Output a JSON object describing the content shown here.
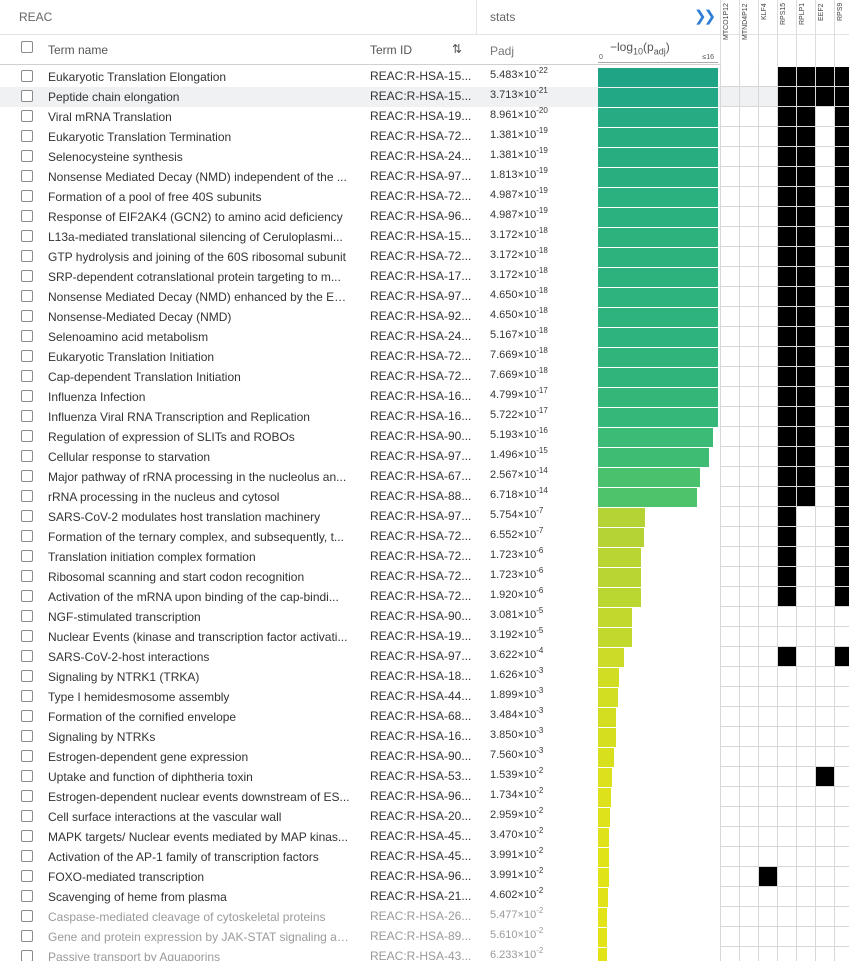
{
  "header": {
    "source": "REAC",
    "stats_label": "stats",
    "expand_icon": "double-chevron-right",
    "term_name_label": "Term name",
    "term_id_label": "Term ID",
    "padj_label": "Padj",
    "axis_label_main": "−log",
    "axis_label_sub1": "10",
    "axis_label_mid": "(p",
    "axis_label_sub2": "adj",
    "axis_label_end": ")",
    "axis_min": "0",
    "axis_max": "≤16"
  },
  "accent_color": "#2f7fd6",
  "genes": [
    "MTCO1P12",
    "MTND4P12",
    "KLF4",
    "RPS15",
    "RPLP1",
    "EEF2",
    "RPS9"
  ],
  "gene_axis_max": 16,
  "rows": [
    {
      "name": "Eukaryotic Translation Elongation",
      "id": "REAC:R-HSA-15...",
      "mantissa": "5.483",
      "exp": "-22",
      "neglog": 21.26,
      "color": "#20a486",
      "genes": [
        3,
        4,
        5,
        6
      ]
    },
    {
      "name": "Peptide chain elongation",
      "id": "REAC:R-HSA-15...",
      "mantissa": "3.713",
      "exp": "-21",
      "neglog": 20.43,
      "color": "#22a884",
      "genes": [
        3,
        4,
        5,
        6
      ],
      "highlight": true
    },
    {
      "name": "Viral mRNA Translation",
      "id": "REAC:R-HSA-19...",
      "mantissa": "8.961",
      "exp": "-20",
      "neglog": 19.05,
      "color": "#26ab82",
      "genes": [
        3,
        4,
        6
      ]
    },
    {
      "name": "Eukaryotic Translation Termination",
      "id": "REAC:R-HSA-72...",
      "mantissa": "1.381",
      "exp": "-19",
      "neglog": 18.86,
      "color": "#28ad81",
      "genes": [
        3,
        4,
        6
      ]
    },
    {
      "name": "Selenocysteine synthesis",
      "id": "REAC:R-HSA-24...",
      "mantissa": "1.381",
      "exp": "-19",
      "neglog": 18.86,
      "color": "#28ad81",
      "genes": [
        3,
        4,
        6
      ]
    },
    {
      "name": "Nonsense Mediated Decay (NMD) independent of the ...",
      "id": "REAC:R-HSA-97...",
      "mantissa": "1.813",
      "exp": "-19",
      "neglog": 18.74,
      "color": "#29ae80",
      "genes": [
        3,
        4,
        6
      ]
    },
    {
      "name": "Formation of a pool of free 40S subunits",
      "id": "REAC:R-HSA-72...",
      "mantissa": "4.987",
      "exp": "-19",
      "neglog": 18.3,
      "color": "#2bb07f",
      "genes": [
        3,
        4,
        6
      ]
    },
    {
      "name": "Response of EIF2AK4 (GCN2) to amino acid deficiency",
      "id": "REAC:R-HSA-96...",
      "mantissa": "4.987",
      "exp": "-19",
      "neglog": 18.3,
      "color": "#2bb07f",
      "genes": [
        3,
        4,
        6
      ]
    },
    {
      "name": "L13a-mediated translational silencing of Ceruloplasmi...",
      "id": "REAC:R-HSA-15...",
      "mantissa": "3.172",
      "exp": "-18",
      "neglog": 17.5,
      "color": "#2db27d",
      "genes": [
        3,
        4,
        6
      ]
    },
    {
      "name": "GTP hydrolysis and joining of the 60S ribosomal subunit",
      "id": "REAC:R-HSA-72...",
      "mantissa": "3.172",
      "exp": "-18",
      "neglog": 17.5,
      "color": "#2db27d",
      "genes": [
        3,
        4,
        6
      ]
    },
    {
      "name": "SRP-dependent cotranslational protein targeting to m...",
      "id": "REAC:R-HSA-17...",
      "mantissa": "3.172",
      "exp": "-18",
      "neglog": 17.5,
      "color": "#2db27d",
      "genes": [
        3,
        4,
        6
      ]
    },
    {
      "name": "Nonsense Mediated Decay (NMD) enhanced by the Ex...",
      "id": "REAC:R-HSA-97...",
      "mantissa": "4.650",
      "exp": "-18",
      "neglog": 17.33,
      "color": "#2eb37c",
      "genes": [
        3,
        4,
        6
      ]
    },
    {
      "name": "Nonsense-Mediated Decay (NMD)",
      "id": "REAC:R-HSA-92...",
      "mantissa": "4.650",
      "exp": "-18",
      "neglog": 17.33,
      "color": "#2eb37c",
      "genes": [
        3,
        4,
        6
      ]
    },
    {
      "name": "Selenoamino acid metabolism",
      "id": "REAC:R-HSA-24...",
      "mantissa": "5.167",
      "exp": "-18",
      "neglog": 17.29,
      "color": "#2eb37c",
      "genes": [
        3,
        4,
        6
      ]
    },
    {
      "name": "Eukaryotic Translation Initiation",
      "id": "REAC:R-HSA-72...",
      "mantissa": "7.669",
      "exp": "-18",
      "neglog": 17.12,
      "color": "#30b47b",
      "genes": [
        3,
        4,
        6
      ]
    },
    {
      "name": "Cap-dependent Translation Initiation",
      "id": "REAC:R-HSA-72...",
      "mantissa": "7.669",
      "exp": "-18",
      "neglog": 17.12,
      "color": "#30b47b",
      "genes": [
        3,
        4,
        6
      ]
    },
    {
      "name": "Influenza Infection",
      "id": "REAC:R-HSA-16...",
      "mantissa": "4.799",
      "exp": "-17",
      "neglog": 16.32,
      "color": "#34b679",
      "genes": [
        3,
        4,
        6
      ]
    },
    {
      "name": "Influenza Viral RNA Transcription and Replication",
      "id": "REAC:R-HSA-16...",
      "mantissa": "5.722",
      "exp": "-17",
      "neglog": 16.24,
      "color": "#35b779",
      "genes": [
        3,
        4,
        6
      ]
    },
    {
      "name": "Regulation of expression of SLITs and ROBOs",
      "id": "REAC:R-HSA-90...",
      "mantissa": "5.193",
      "exp": "-16",
      "neglog": 15.28,
      "color": "#3bbb75",
      "genes": [
        3,
        4,
        6
      ]
    },
    {
      "name": "Cellular response to starvation",
      "id": "REAC:R-HSA-97...",
      "mantissa": "1.496",
      "exp": "-15",
      "neglog": 14.83,
      "color": "#3fbc73",
      "genes": [
        3,
        4,
        6
      ]
    },
    {
      "name": "Major pathway of rRNA processing in the nucleolus an...",
      "id": "REAC:R-HSA-67...",
      "mantissa": "2.567",
      "exp": "-14",
      "neglog": 13.59,
      "color": "#4ac16d",
      "genes": [
        3,
        4,
        6
      ]
    },
    {
      "name": "rRNA processing in the nucleus and cytosol",
      "id": "REAC:R-HSA-88...",
      "mantissa": "6.718",
      "exp": "-14",
      "neglog": 13.17,
      "color": "#4ec36b",
      "genes": [
        3,
        4,
        6
      ]
    },
    {
      "name": "SARS-CoV-2 modulates host translation machinery",
      "id": "REAC:R-HSA-97...",
      "mantissa": "5.754",
      "exp": "-7",
      "neglog": 6.24,
      "color": "#b5d334",
      "genes": [
        3,
        6
      ]
    },
    {
      "name": "Formation of the ternary complex, and subsequently, t...",
      "id": "REAC:R-HSA-72...",
      "mantissa": "6.552",
      "exp": "-7",
      "neglog": 6.18,
      "color": "#b5d334",
      "genes": [
        3,
        6
      ]
    },
    {
      "name": "Translation initiation complex formation",
      "id": "REAC:R-HSA-72...",
      "mantissa": "1.723",
      "exp": "-6",
      "neglog": 5.76,
      "color": "#b9d532",
      "genes": [
        3,
        6
      ]
    },
    {
      "name": "Ribosomal scanning and start codon recognition",
      "id": "REAC:R-HSA-72...",
      "mantissa": "1.723",
      "exp": "-6",
      "neglog": 5.76,
      "color": "#b9d532",
      "genes": [
        3,
        6
      ]
    },
    {
      "name": "Activation of the mRNA upon binding of the cap-bindi...",
      "id": "REAC:R-HSA-72...",
      "mantissa": "1.920",
      "exp": "-6",
      "neglog": 5.72,
      "color": "#bad631",
      "genes": [
        3,
        6
      ]
    },
    {
      "name": "NGF-stimulated transcription",
      "id": "REAC:R-HSA-90...",
      "mantissa": "3.081",
      "exp": "-5",
      "neglog": 4.51,
      "color": "#c3d82c",
      "genes": []
    },
    {
      "name": "Nuclear Events (kinase and transcription factor activati...",
      "id": "REAC:R-HSA-19...",
      "mantissa": "3.192",
      "exp": "-5",
      "neglog": 4.5,
      "color": "#c3d82c",
      "genes": []
    },
    {
      "name": "SARS-CoV-2-host interactions",
      "id": "REAC:R-HSA-97...",
      "mantissa": "3.622",
      "exp": "-4",
      "neglog": 3.44,
      "color": "#cbdb27",
      "genes": [
        3,
        6
      ]
    },
    {
      "name": "Signaling by NTRK1 (TRKA)",
      "id": "REAC:R-HSA-18...",
      "mantissa": "1.626",
      "exp": "-3",
      "neglog": 2.79,
      "color": "#d1dd23",
      "genes": []
    },
    {
      "name": "Type I hemidesmosome assembly",
      "id": "REAC:R-HSA-44...",
      "mantissa": "1.899",
      "exp": "-3",
      "neglog": 2.72,
      "color": "#d2de22",
      "genes": []
    },
    {
      "name": "Formation of the cornified envelope",
      "id": "REAC:R-HSA-68...",
      "mantissa": "3.484",
      "exp": "-3",
      "neglog": 2.46,
      "color": "#d4de21",
      "genes": []
    },
    {
      "name": "Signaling by NTRKs",
      "id": "REAC:R-HSA-16...",
      "mantissa": "3.850",
      "exp": "-3",
      "neglog": 2.41,
      "color": "#d5df20",
      "genes": []
    },
    {
      "name": "Estrogen-dependent gene expression",
      "id": "REAC:R-HSA-90...",
      "mantissa": "7.560",
      "exp": "-3",
      "neglog": 2.12,
      "color": "#d8e01e",
      "genes": []
    },
    {
      "name": "Uptake and function of diphtheria toxin",
      "id": "REAC:R-HSA-53...",
      "mantissa": "1.539",
      "exp": "-2",
      "neglog": 1.81,
      "color": "#dbe11c",
      "genes": [
        5
      ]
    },
    {
      "name": "Estrogen-dependent nuclear events downstream of ES...",
      "id": "REAC:R-HSA-96...",
      "mantissa": "1.734",
      "exp": "-2",
      "neglog": 1.76,
      "color": "#dce11b",
      "genes": []
    },
    {
      "name": "Cell surface interactions at the vascular wall",
      "id": "REAC:R-HSA-20...",
      "mantissa": "2.959",
      "exp": "-2",
      "neglog": 1.53,
      "color": "#dee21a",
      "genes": []
    },
    {
      "name": "MAPK targets/ Nuclear events mediated by MAP kinas...",
      "id": "REAC:R-HSA-45...",
      "mantissa": "3.470",
      "exp": "-2",
      "neglog": 1.46,
      "color": "#dfe219",
      "genes": []
    },
    {
      "name": "Activation of the AP-1 family of transcription factors",
      "id": "REAC:R-HSA-45...",
      "mantissa": "3.991",
      "exp": "-2",
      "neglog": 1.4,
      "color": "#e0e318",
      "genes": []
    },
    {
      "name": "FOXO-mediated transcription",
      "id": "REAC:R-HSA-96...",
      "mantissa": "3.991",
      "exp": "-2",
      "neglog": 1.4,
      "color": "#e0e318",
      "genes": [
        2
      ]
    },
    {
      "name": "Scavenging of heme from plasma",
      "id": "REAC:R-HSA-21...",
      "mantissa": "4.602",
      "exp": "-2",
      "neglog": 1.34,
      "color": "#e1e318",
      "genes": []
    },
    {
      "name": "Caspase-mediated cleavage of cytoskeletal proteins",
      "id": "REAC:R-HSA-26...",
      "mantissa": "5.477",
      "exp": "-2",
      "neglog": 1.26,
      "color": "#e2e418",
      "genes": [],
      "faded": true
    },
    {
      "name": "Gene and protein expression by JAK-STAT signaling aft...",
      "id": "REAC:R-HSA-89...",
      "mantissa": "5.610",
      "exp": "-2",
      "neglog": 1.25,
      "color": "#e2e418",
      "genes": [],
      "faded": true
    },
    {
      "name": "Passive transport by Aquaporins",
      "id": "REAC:R-HSA-43...",
      "mantissa": "6.233",
      "exp": "-2",
      "neglog": 1.21,
      "color": "#e3e418",
      "genes": [],
      "faded": true
    }
  ]
}
